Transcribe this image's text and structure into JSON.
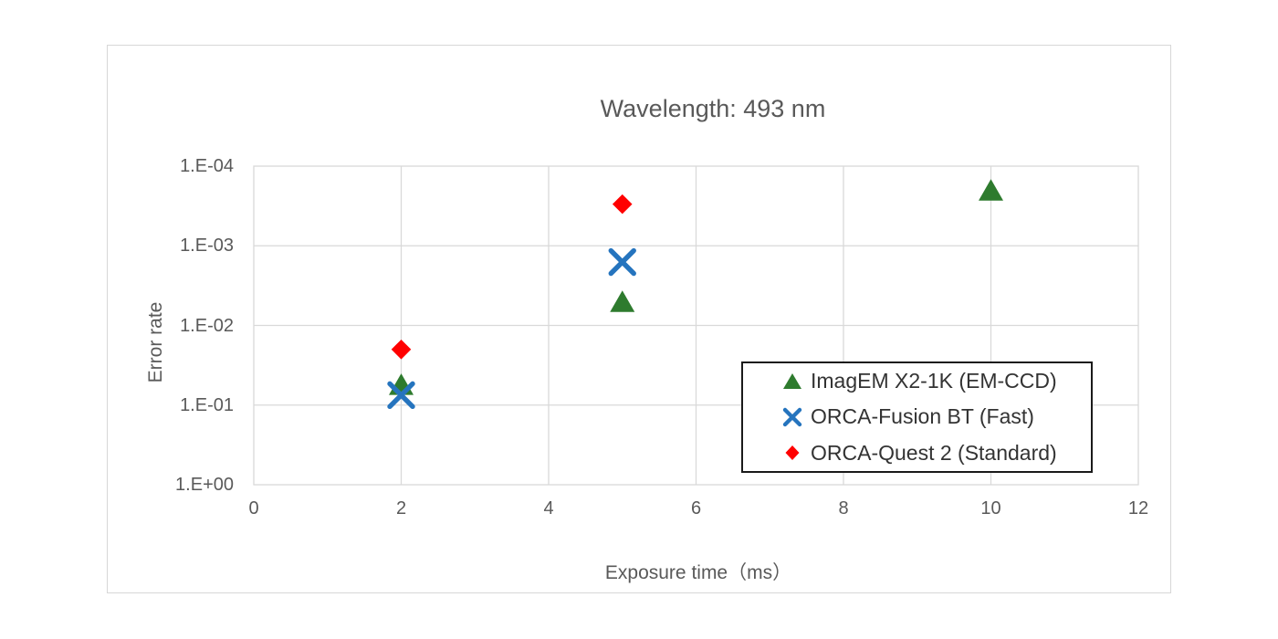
{
  "chart_data": {
    "type": "scatter",
    "title": "Wavelength: 493 nm",
    "xlabel": "Exposure time（ms）",
    "ylabel": "Error rate",
    "x_axis": {
      "min": 0,
      "max": 12,
      "ticks": [
        0,
        2,
        4,
        6,
        8,
        10,
        12
      ]
    },
    "y_axis": {
      "scale": "log10",
      "direction": "inverted (1.E-04 at top, 1.E+00 at bottom)",
      "tick_labels": [
        "1.E-04",
        "1.E-03",
        "1.E-02",
        "1.E-01",
        "1.E+00"
      ],
      "tick_values": [
        0.0001,
        0.001,
        0.01,
        0.1,
        1
      ]
    },
    "grid": true,
    "legend_position": "inside-lower-right-boxed",
    "series": [
      {
        "name": "ImagEM X2-1K (EM-CCD)",
        "marker": "triangle",
        "color": "#2E7B2E",
        "points": [
          [
            2,
            0.055
          ],
          [
            5,
            0.005
          ],
          [
            10,
            0.0002
          ]
        ]
      },
      {
        "name": "ORCA-Fusion BT (Fast)",
        "marker": "x",
        "color": "#2574BE",
        "points": [
          [
            2,
            0.075
          ],
          [
            5,
            0.0016
          ]
        ]
      },
      {
        "name": "ORCA-Quest 2 (Standard)",
        "marker": "diamond",
        "color": "#FF0000",
        "points": [
          [
            2,
            0.02
          ],
          [
            5,
            0.0003
          ]
        ]
      }
    ]
  }
}
